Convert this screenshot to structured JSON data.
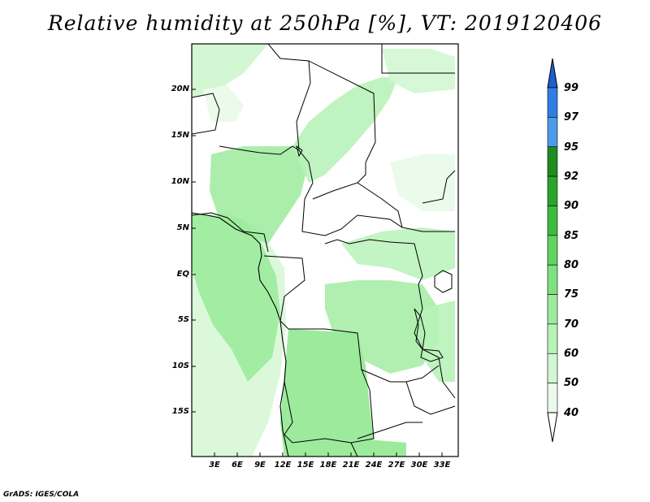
{
  "title": "Relative humidity at 250hPa [%], VT: 2019120406",
  "map": {
    "lat_labels": [
      "20N",
      "15N",
      "10N",
      "5N",
      "EQ",
      "5S",
      "10S",
      "15S"
    ],
    "lon_labels": [
      "3E",
      "6E",
      "9E",
      "12E",
      "15E",
      "18E",
      "21E",
      "24E",
      "27E",
      "30E",
      "33E"
    ]
  },
  "colorbar": {
    "levels": [
      "99",
      "97",
      "95",
      "92",
      "90",
      "85",
      "80",
      "75",
      "70",
      "60",
      "50",
      "40"
    ],
    "colors": [
      "#1c5fd0",
      "#2f7fe3",
      "#4c9be9",
      "#1e8c1e",
      "#2aa52a",
      "#3cbc3c",
      "#5fd45f",
      "#7fe07f",
      "#9ceb9c",
      "#b8f2b8",
      "#d2f7d2",
      "#ebfbeb"
    ]
  },
  "credit": "GrADS: IGES/COLA"
}
